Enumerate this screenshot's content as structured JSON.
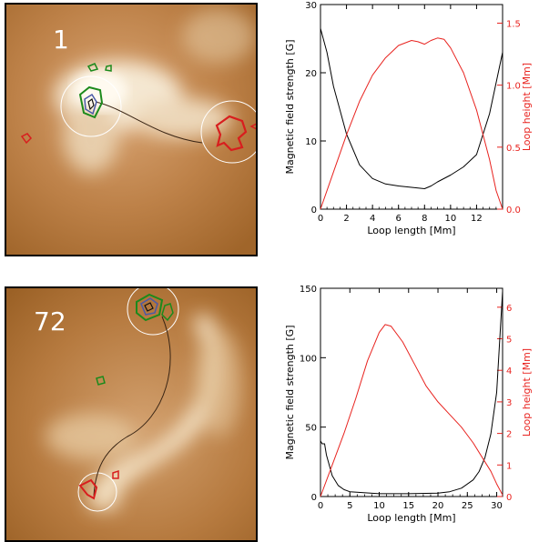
{
  "panels": [
    {
      "image": {
        "label": "1"
      },
      "chart": {
        "type": "line",
        "xlabel": "Loop length [Mm]",
        "ylabel_left": "Magnetic field strength [G]",
        "ylabel_right": "Loop height [Mm]",
        "xlim": [
          0,
          14
        ],
        "ylim_left": [
          0,
          30
        ],
        "ylim_right": [
          0,
          1.65
        ],
        "xticks": [
          "0",
          "2",
          "4",
          "6",
          "8",
          "10",
          "12"
        ],
        "xtick_values": [
          0,
          2,
          4,
          6,
          8,
          10,
          12
        ],
        "yticks_left": [
          "0",
          "10",
          "20",
          "30"
        ],
        "ytick_values_left": [
          0,
          10,
          20,
          30
        ],
        "yticks_right": [
          "0.0",
          "0.5",
          "1.0",
          "1.5"
        ],
        "ytick_values_right": [
          0,
          0.5,
          1.0,
          1.5
        ],
        "series": [
          {
            "axis": "left",
            "color": "#000000",
            "x": [
              0,
              0.5,
              1,
              2,
              3,
              4,
              5,
              6,
              7,
              8,
              8.5,
              9,
              10,
              11,
              12,
              13,
              14
            ],
            "y": [
              26.5,
              23,
              18,
              11,
              6.5,
              4.5,
              3.7,
              3.4,
              3.2,
              3.0,
              3.4,
              4.0,
              5.0,
              6.2,
              8.0,
              14,
              23
            ]
          },
          {
            "axis": "right",
            "color": "#e8231f",
            "x": [
              0,
              1,
              2,
              3,
              4,
              5,
              6,
              7,
              7.5,
              8,
              8.5,
              9,
              9.5,
              10,
              11,
              12,
              13,
              13.5,
              14
            ],
            "y": [
              0,
              0.3,
              0.6,
              0.87,
              1.08,
              1.22,
              1.32,
              1.36,
              1.35,
              1.33,
              1.36,
              1.38,
              1.37,
              1.3,
              1.1,
              0.8,
              0.4,
              0.15,
              0
            ]
          }
        ]
      }
    },
    {
      "image": {
        "label": "72"
      },
      "chart": {
        "type": "line",
        "xlabel": "Loop length [Mm]",
        "ylabel_left": "Magnetic field strength [G]",
        "ylabel_right": "Loop height [Mm]",
        "xlim": [
          0,
          31
        ],
        "ylim_left": [
          0,
          150
        ],
        "ylim_right": [
          0,
          6.6
        ],
        "xticks": [
          "0",
          "5",
          "10",
          "15",
          "20",
          "25",
          "30"
        ],
        "xtick_values": [
          0,
          5,
          10,
          15,
          20,
          25,
          30
        ],
        "yticks_left": [
          "0",
          "50",
          "100",
          "150"
        ],
        "ytick_values_left": [
          0,
          50,
          100,
          150
        ],
        "yticks_right": [
          "0",
          "1",
          "2",
          "3",
          "4",
          "5",
          "6"
        ],
        "ytick_values_right": [
          0,
          1,
          2,
          3,
          4,
          5,
          6
        ],
        "series": [
          {
            "axis": "left",
            "color": "#000000",
            "x": [
              0,
              0.3,
              0.7,
              1,
              2,
              3,
              4,
              5,
              10,
              15,
              20,
              22,
              24,
              26,
              27,
              28,
              29,
              30,
              31
            ],
            "y": [
              40,
              38,
              38,
              30,
              15,
              8,
              5,
              3.5,
              2,
              2,
              2.5,
              3.5,
              6,
              12,
              18,
              28,
              45,
              75,
              148
            ]
          },
          {
            "axis": "right",
            "color": "#e8231f",
            "x": [
              0,
              2,
              4,
              6,
              8,
              10,
              11,
              12,
              14,
              16,
              18,
              20,
              22,
              24,
              26,
              28,
              29,
              30,
              31
            ],
            "y": [
              0,
              1.0,
              2.0,
              3.1,
              4.3,
              5.2,
              5.45,
              5.4,
              4.9,
              4.2,
              3.5,
              3.0,
              2.6,
              2.2,
              1.7,
              1.1,
              0.8,
              0.4,
              0.05
            ]
          }
        ]
      }
    }
  ]
}
